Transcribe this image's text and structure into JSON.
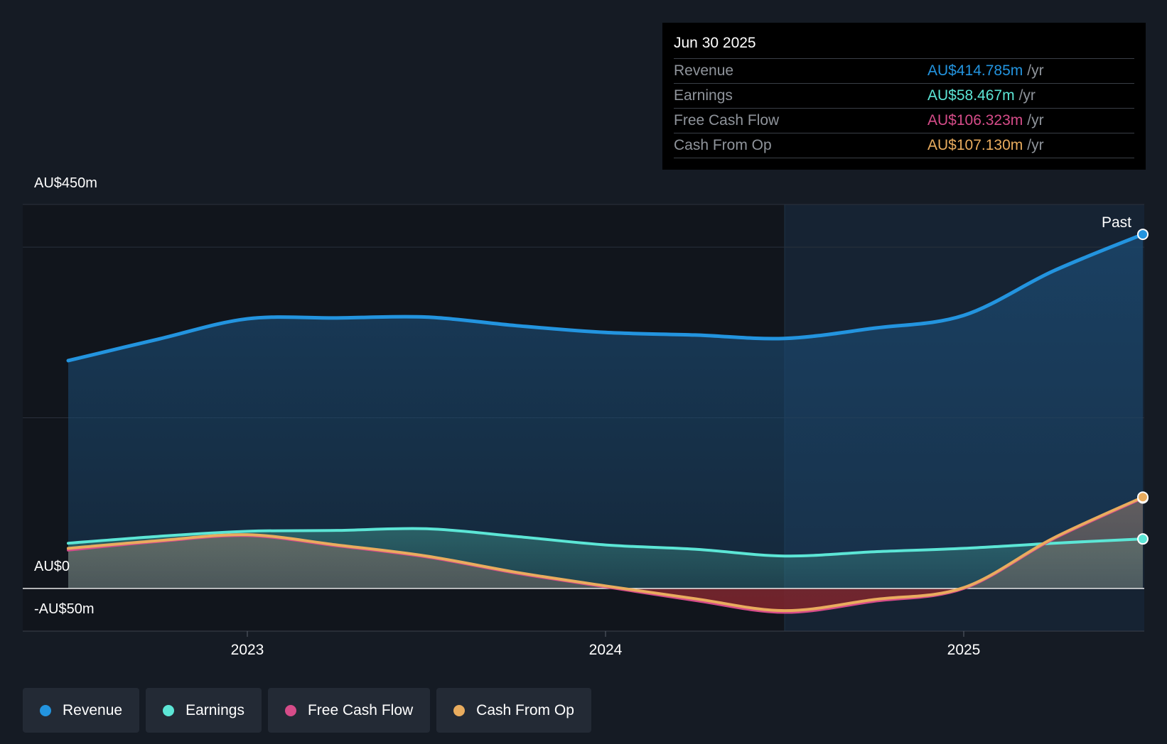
{
  "tooltip": {
    "date": "Jun 30 2025",
    "unit": "/yr",
    "rows": [
      {
        "label": "Revenue",
        "value": "AU$414.785m",
        "color": "#2394df"
      },
      {
        "label": "Earnings",
        "value": "AU$58.467m",
        "color": "#5ce6d6"
      },
      {
        "label": "Free Cash Flow",
        "value": "AU$106.323m",
        "color": "#d64c89"
      },
      {
        "label": "Cash From Op",
        "value": "AU$107.130m",
        "color": "#e9ac5e"
      }
    ]
  },
  "legend": [
    {
      "label": "Revenue",
      "color": "#2394df"
    },
    {
      "label": "Earnings",
      "color": "#5ce6d6"
    },
    {
      "label": "Free Cash Flow",
      "color": "#d64c89"
    },
    {
      "label": "Cash From Op",
      "color": "#e9ac5e"
    }
  ],
  "chart_data": {
    "type": "area",
    "y_tick_labels": [
      "AU$450m",
      "AU$0",
      "-AU$50m"
    ],
    "x_tick_labels": [
      "2023",
      "2024",
      "2025"
    ],
    "ylim": [
      -50,
      450
    ],
    "past_label": "Past",
    "series": [
      {
        "name": "Revenue",
        "color": "#2394df",
        "x": [
          2022.5,
          2022.75,
          2023.0,
          2023.25,
          2023.5,
          2023.75,
          2024.0,
          2024.25,
          2024.5,
          2024.75,
          2025.0,
          2025.25,
          2025.5
        ],
        "values": [
          267,
          292,
          316,
          317,
          318,
          308,
          300,
          297,
          293,
          305,
          320,
          372,
          415
        ]
      },
      {
        "name": "Earnings",
        "color": "#5ce6d6",
        "x": [
          2022.5,
          2022.75,
          2023.0,
          2023.25,
          2023.5,
          2023.75,
          2024.0,
          2024.25,
          2024.5,
          2024.75,
          2025.0,
          2025.25,
          2025.5
        ],
        "values": [
          53,
          61,
          67,
          68,
          70,
          61,
          51,
          46,
          38,
          43,
          47,
          53,
          58
        ]
      },
      {
        "name": "Free Cash Flow",
        "color": "#d64c89",
        "x": [
          2022.5,
          2022.75,
          2023.0,
          2023.25,
          2023.5,
          2023.75,
          2024.0,
          2024.25,
          2024.5,
          2024.75,
          2025.0,
          2025.25,
          2025.5
        ],
        "values": [
          45,
          55,
          62,
          50,
          37,
          18,
          2,
          -14,
          -28,
          -15,
          0,
          58,
          106
        ]
      },
      {
        "name": "Cash From Op",
        "color": "#e9ac5e",
        "x": [
          2022.5,
          2022.75,
          2023.0,
          2023.25,
          2023.5,
          2023.75,
          2024.0,
          2024.25,
          2024.5,
          2024.75,
          2025.0,
          2025.25,
          2025.5
        ],
        "values": [
          47,
          56,
          63,
          51,
          38,
          19,
          3,
          -12,
          -26,
          -13,
          1,
          59,
          107
        ]
      }
    ]
  }
}
